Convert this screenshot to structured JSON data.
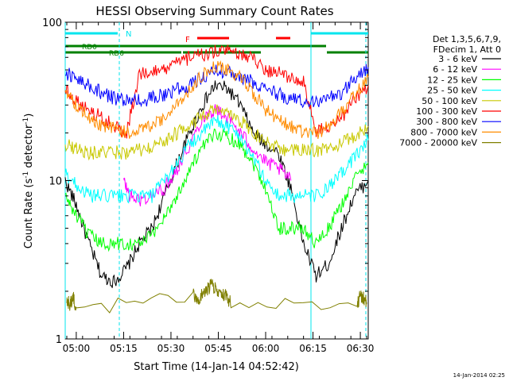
{
  "chart_data": {
    "type": "line",
    "title": "HESSI Observing Summary Count Rates",
    "xlabel": "Start Time (14-Jan-14 04:52:42)",
    "ylabel": "Count Rate (s",
    "ylabel_sup": "-1",
    "ylabel_tail": " detector",
    "ylabel_end": ")",
    "yscale": "log",
    "ylim": [
      1,
      100
    ],
    "y_ticks": [
      {
        "value": 1,
        "label": "1"
      },
      {
        "value": 10,
        "label": "10"
      },
      {
        "value": 100,
        "label": "100"
      }
    ],
    "xlim_minutes": [
      4.5,
      100.5
    ],
    "x_ticks": [
      {
        "minute": 8,
        "label": "05:00"
      },
      {
        "minute": 23,
        "label": "05:15"
      },
      {
        "minute": 38,
        "label": "05:30"
      },
      {
        "minute": 53,
        "label": "05:45"
      },
      {
        "minute": 68,
        "label": "06:00"
      },
      {
        "minute": 83,
        "label": "06:15"
      },
      {
        "minute": 98,
        "label": "06:30"
      }
    ],
    "legend": {
      "header": [
        "Det 1,3,5,6,7,9,",
        "FDecim 1, Att 0"
      ],
      "position": "right",
      "entries": [
        {
          "label": "3 - 6 keV",
          "color": "#000000"
        },
        {
          "label": "6 - 12 keV",
          "color": "#ff00ff"
        },
        {
          "label": "12 - 25 keV",
          "color": "#00ff00"
        },
        {
          "label": "25 - 50 keV",
          "color": "#00ffff"
        },
        {
          "label": "50 - 100 keV",
          "color": "#c8c800"
        },
        {
          "label": "100 - 300 keV",
          "color": "#ff0000"
        },
        {
          "label": "300 - 800 keV",
          "color": "#0000ff"
        },
        {
          "label": "800 - 7000 keV",
          "color": "#ff8c00"
        },
        {
          "label": "7000 - 20000 keV",
          "color": "#808000"
        }
      ]
    },
    "annotations": [
      {
        "text": "N",
        "color": "#00e5ee"
      },
      {
        "text": "F",
        "color": "#ff0000"
      },
      {
        "text": "RD0",
        "color": "#008000"
      },
      {
        "text": "RD6",
        "color": "#008000"
      }
    ],
    "series": [
      {
        "name": "3 - 6 keV",
        "color": "#000000",
        "x": [
          4.5,
          8,
          12,
          16,
          20,
          24,
          28,
          32,
          36,
          40,
          44,
          48,
          52,
          56,
          60,
          64,
          68,
          72,
          76,
          80,
          84,
          88,
          92,
          96,
          100.5
        ],
        "y": [
          10,
          7,
          4,
          2.5,
          2.3,
          2.8,
          4,
          5,
          8,
          13,
          20,
          30,
          40,
          38,
          30,
          20,
          17,
          15,
          9,
          4,
          2.5,
          3,
          5,
          8,
          10
        ]
      },
      {
        "name": "6 - 12 keV",
        "color": "#ff00ff",
        "x": [
          23,
          25,
          28,
          32,
          36,
          40,
          44,
          48,
          52,
          56,
          60,
          64,
          68,
          72,
          76
        ],
        "y": [
          10,
          8,
          7.5,
          8,
          9,
          12,
          17,
          25,
          28,
          25,
          20,
          16,
          13,
          12,
          10
        ]
      },
      {
        "name": "12 - 25 keV",
        "color": "#00ff00",
        "x": [
          4.5,
          8,
          12,
          16,
          20,
          24,
          28,
          32,
          36,
          40,
          44,
          48,
          52,
          56,
          60,
          64,
          68,
          72,
          76,
          80,
          84,
          88,
          92,
          96,
          100.5
        ],
        "y": [
          8,
          6,
          4.5,
          4,
          4,
          4,
          4,
          4.5,
          6,
          8,
          12,
          16,
          20,
          19,
          17,
          13,
          9,
          5,
          5,
          5,
          4,
          5,
          7,
          10,
          13
        ]
      },
      {
        "name": "25 - 50 keV",
        "color": "#00ffff",
        "x": [
          4.5,
          8,
          12,
          16,
          20,
          24,
          28,
          32,
          36,
          40,
          44,
          48,
          52,
          56,
          60,
          64,
          68,
          72,
          76,
          80,
          84,
          88,
          92,
          96,
          100.5
        ],
        "y": [
          11,
          9.5,
          8,
          8,
          8,
          8,
          8,
          8,
          10,
          13,
          17,
          20,
          24,
          22,
          19,
          14,
          10,
          8,
          8,
          8,
          8,
          9,
          11,
          14,
          18
        ]
      },
      {
        "name": "50 - 100 keV",
        "color": "#c8c800",
        "x": [
          4.5,
          8,
          12,
          16,
          20,
          24,
          28,
          32,
          36,
          40,
          44,
          48,
          52,
          56,
          60,
          64,
          68,
          72,
          76,
          80,
          84,
          88,
          92,
          96,
          100.5
        ],
        "y": [
          17,
          16,
          15,
          15,
          15,
          15,
          15.5,
          16,
          18,
          20,
          23,
          25,
          28,
          26,
          24,
          20,
          18,
          16,
          15.5,
          15.5,
          15.5,
          16,
          17,
          19,
          22
        ]
      },
      {
        "name": "100 - 300 keV",
        "color": "#ff0000",
        "x": [
          4.5,
          8,
          12,
          16,
          20,
          24,
          28,
          32,
          36,
          40,
          44,
          48,
          52,
          56,
          60,
          64,
          68,
          72,
          76,
          80,
          84,
          88,
          92,
          96,
          100.5
        ],
        "y": [
          38,
          32,
          28,
          25,
          22,
          20,
          48,
          48,
          50,
          55,
          60,
          62,
          65,
          65,
          62,
          60,
          50,
          48,
          45,
          42,
          20,
          22,
          25,
          32,
          40
        ]
      },
      {
        "name": "300 - 800 keV",
        "color": "#0000ff",
        "x": [
          4.5,
          8,
          12,
          16,
          20,
          24,
          28,
          32,
          36,
          40,
          44,
          48,
          52,
          56,
          60,
          64,
          68,
          72,
          76,
          80,
          84,
          88,
          92,
          96,
          100.5
        ],
        "y": [
          48,
          44,
          40,
          36,
          33,
          32,
          32,
          33,
          35,
          38,
          40,
          45,
          50,
          48,
          44,
          42,
          38,
          35,
          33,
          32,
          32,
          33,
          36,
          44,
          52
        ]
      },
      {
        "name": "800 - 7000 keV",
        "color": "#ff8c00",
        "x": [
          4.5,
          8,
          12,
          16,
          20,
          24,
          28,
          32,
          36,
          40,
          44,
          48,
          52,
          56,
          60,
          64,
          68,
          72,
          76,
          80,
          84,
          88,
          92,
          96,
          100.5
        ],
        "y": [
          38,
          30,
          25,
          22,
          21,
          20,
          21,
          22,
          25,
          30,
          38,
          46,
          52,
          50,
          44,
          36,
          28,
          24,
          22,
          20,
          20,
          22,
          27,
          35,
          45
        ]
      },
      {
        "name": "7000 - 20000 keV",
        "color": "#808000",
        "x": [
          5,
          6,
          7,
          8,
          45,
          47,
          49,
          51,
          53,
          55,
          57,
          97,
          98,
          99,
          100
        ],
        "y": [
          1.8,
          1.6,
          1.9,
          1.5,
          1.9,
          1.8,
          2.0,
          2.2,
          2.0,
          1.9,
          1.7,
          1.6,
          1.9,
          1.8,
          1.7
        ]
      }
    ]
  },
  "footer": {
    "timestamp": "14-Jan-2014 02:25"
  }
}
